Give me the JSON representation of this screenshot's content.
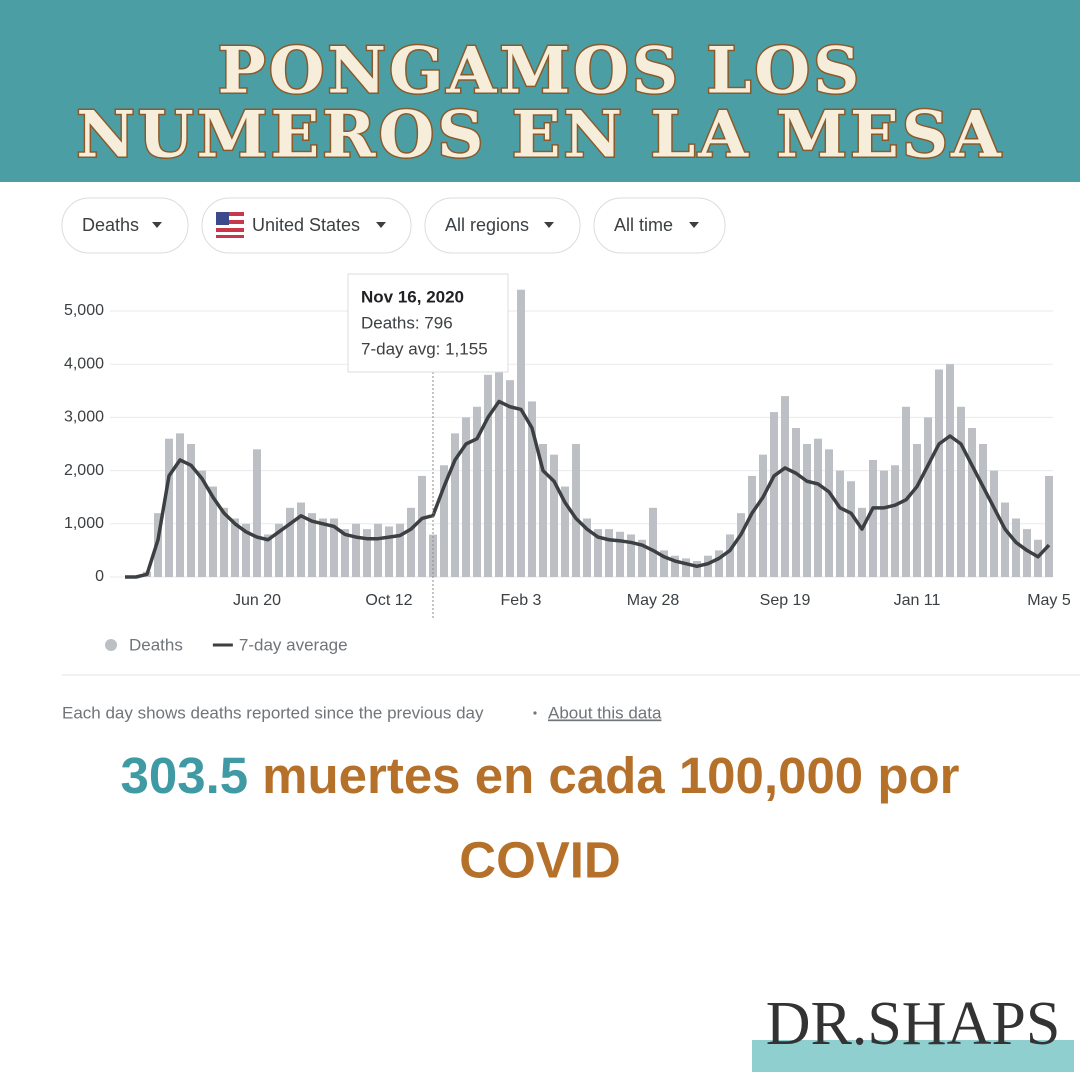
{
  "header": {
    "title_lines": [
      "PONGAMOS LOS",
      "NUMEROS EN LA MESA"
    ]
  },
  "filters": [
    "Deaths",
    "United States",
    "All regions",
    "All time"
  ],
  "chart_data": {
    "type": "bar_line",
    "categories": [
      null,
      null,
      null,
      null,
      null,
      null,
      null,
      null,
      null,
      null,
      null,
      null,
      "Jun 20",
      null,
      null,
      null,
      null,
      null,
      null,
      null,
      null,
      null,
      null,
      null,
      "Oct 12",
      null,
      null,
      null,
      null,
      null,
      null,
      null,
      null,
      null,
      null,
      null,
      "Feb 3",
      null,
      null,
      null,
      null,
      null,
      null,
      null,
      null,
      null,
      null,
      null,
      "May 28",
      null,
      null,
      null,
      null,
      null,
      null,
      null,
      null,
      null,
      null,
      null,
      "Sep 19",
      null,
      null,
      null,
      null,
      null,
      null,
      null,
      null,
      null,
      null,
      null,
      "Jan 11",
      null,
      null,
      null,
      null,
      null,
      null,
      null,
      null,
      null,
      null,
      null,
      "May 5"
    ],
    "series": [
      {
        "name": "Deaths",
        "color": "#bcbfc4",
        "kind": "bar",
        "values": [
          0,
          0,
          100,
          1200,
          2600,
          2700,
          2500,
          2000,
          1700,
          1300,
          1100,
          1000,
          2400,
          800,
          1000,
          1300,
          1400,
          1200,
          1100,
          1100,
          900,
          1000,
          900,
          1000,
          950,
          1000,
          1300,
          1900,
          796,
          2100,
          2700,
          3000,
          3200,
          3800,
          4100,
          3700,
          5400,
          3300,
          2500,
          2300,
          1700,
          2500,
          1100,
          900,
          900,
          850,
          800,
          700,
          1300,
          500,
          400,
          350,
          300,
          400,
          500,
          800,
          1200,
          1900,
          2300,
          3100,
          3400,
          2800,
          2500,
          2600,
          2400,
          2000,
          1800,
          1300,
          2200,
          2000,
          2100,
          3200,
          2500,
          3000,
          3900,
          4000,
          3200,
          2800,
          2500,
          2000,
          1400,
          1100,
          900,
          700,
          1900
        ]
      },
      {
        "name": "7-day average",
        "color": "#3c4043",
        "kind": "line",
        "values": [
          0,
          0,
          50,
          700,
          1900,
          2200,
          2100,
          1850,
          1500,
          1200,
          1000,
          850,
          750,
          700,
          850,
          1000,
          1150,
          1050,
          1000,
          950,
          800,
          750,
          720,
          720,
          750,
          780,
          900,
          1100,
          1155,
          1700,
          2200,
          2500,
          2600,
          3000,
          3300,
          3200,
          3150,
          2800,
          2000,
          1800,
          1400,
          1100,
          900,
          750,
          700,
          680,
          650,
          600,
          500,
          380,
          300,
          250,
          200,
          250,
          350,
          500,
          800,
          1200,
          1500,
          1900,
          2050,
          1950,
          1800,
          1750,
          1600,
          1300,
          1200,
          900,
          1300,
          1300,
          1350,
          1450,
          1700,
          2100,
          2500,
          2650,
          2500,
          2100,
          1700,
          1300,
          900,
          650,
          500,
          380,
          600
        ]
      }
    ],
    "ylim": [
      0,
      5500
    ],
    "yticks": [
      0,
      {
        "value": 1000,
        "label": "1,000"
      },
      {
        "value": 2000,
        "label": "2,000"
      },
      {
        "value": 3000,
        "label": "3,000"
      },
      {
        "value": 4000,
        "label": "4,000"
      },
      {
        "value": 5000,
        "label": "5,000"
      }
    ],
    "grid": true,
    "tooltip": {
      "date": "Nov 16, 2020",
      "deaths": "Deaths: 796",
      "avg": "7-day avg: 1,155"
    }
  },
  "footnote": {
    "text": "Each day shows deaths reported since the previous day",
    "link": "About this data"
  },
  "statement": {
    "highlight": "303.5",
    "rest": "muertes en cada 100,000 por",
    "line2": "COVID"
  },
  "logo": "DR.SHAPS"
}
